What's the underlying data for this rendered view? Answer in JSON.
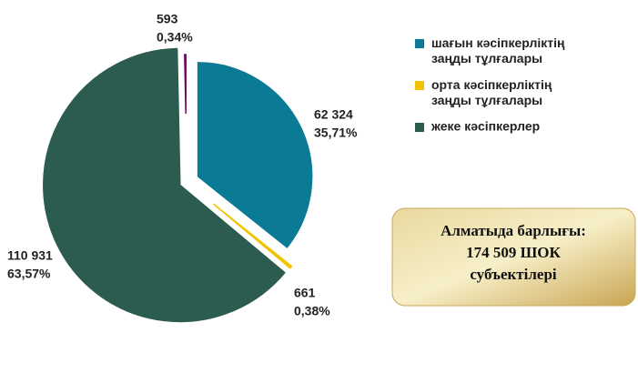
{
  "chart_data": {
    "type": "pie",
    "categories": [
      "шағын кәсіпкерліктің заңды тұлғалары",
      "орта кәсіпкерліктің заңды тұлғалары",
      "жеке кәсіпкерлер",
      null
    ],
    "values": [
      62324,
      661,
      110931,
      593
    ],
    "value_labels": [
      "62 324",
      "661",
      "110 931",
      "593"
    ],
    "percentages": [
      35.71,
      0.38,
      63.57,
      0.34
    ],
    "percentage_labels": [
      "35,71%",
      "0,38%",
      "63,57%",
      "0,34%"
    ],
    "colors": [
      "#0b7a95",
      "#f2c200",
      "#2b5c4f",
      "#6b0a5e"
    ],
    "annotation": [
      "Алматыда барлығы:",
      "174 509 ШОК",
      "субъектілері"
    ]
  }
}
